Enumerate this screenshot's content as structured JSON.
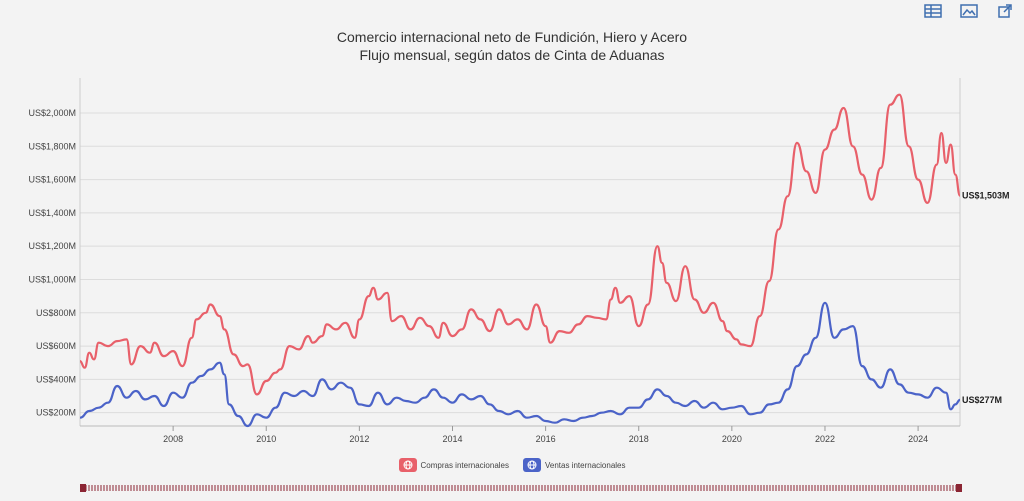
{
  "toolbar": {
    "icons": [
      "table-icon",
      "image-icon",
      "external-link-icon"
    ]
  },
  "colors": {
    "series1": "#e8606a",
    "series2": "#4b63c8",
    "grid": "#dcdcdc",
    "accent": "#8b2533"
  },
  "chart_data": {
    "type": "line",
    "title": "Comercio internacional neto de Fundición, Hiero y Acero",
    "subtitle": "Flujo mensual, según datos de Cinta de Aduanas",
    "xlabel": "",
    "ylabel": "",
    "xlim": [
      2006.0,
      2024.9
    ],
    "ylim": [
      120,
      2150
    ],
    "x_ticks": [
      2008,
      2010,
      2012,
      2014,
      2016,
      2018,
      2020,
      2022,
      2024
    ],
    "y_ticks": [
      {
        "value": 200,
        "label": "US$200M"
      },
      {
        "value": 400,
        "label": "US$400M"
      },
      {
        "value": 600,
        "label": "US$600M"
      },
      {
        "value": 800,
        "label": "US$800M"
      },
      {
        "value": 1000,
        "label": "US$1,000M"
      },
      {
        "value": 1200,
        "label": "US$1,200M"
      },
      {
        "value": 1400,
        "label": "US$1,400M"
      },
      {
        "value": 1600,
        "label": "US$1,600M"
      },
      {
        "value": 1800,
        "label": "US$1,800M"
      },
      {
        "value": 2000,
        "label": "US$2,000M"
      }
    ],
    "legend_position": "bottom",
    "series": [
      {
        "name": "Compras internacionales",
        "end_label": "US$1,503M",
        "points": [
          [
            2006.0,
            510
          ],
          [
            2006.1,
            470
          ],
          [
            2006.2,
            560
          ],
          [
            2006.3,
            520
          ],
          [
            2006.4,
            620
          ],
          [
            2006.6,
            600
          ],
          [
            2006.8,
            630
          ],
          [
            2007.0,
            640
          ],
          [
            2007.1,
            490
          ],
          [
            2007.3,
            600
          ],
          [
            2007.5,
            560
          ],
          [
            2007.6,
            620
          ],
          [
            2007.8,
            540
          ],
          [
            2008.0,
            570
          ],
          [
            2008.2,
            480
          ],
          [
            2008.4,
            650
          ],
          [
            2008.5,
            760
          ],
          [
            2008.7,
            800
          ],
          [
            2008.8,
            850
          ],
          [
            2009.0,
            780
          ],
          [
            2009.1,
            700
          ],
          [
            2009.3,
            550
          ],
          [
            2009.5,
            480
          ],
          [
            2009.6,
            490
          ],
          [
            2009.8,
            310
          ],
          [
            2010.0,
            390
          ],
          [
            2010.2,
            440
          ],
          [
            2010.3,
            460
          ],
          [
            2010.5,
            600
          ],
          [
            2010.7,
            580
          ],
          [
            2010.9,
            660
          ],
          [
            2011.0,
            620
          ],
          [
            2011.2,
            660
          ],
          [
            2011.3,
            730
          ],
          [
            2011.5,
            700
          ],
          [
            2011.7,
            740
          ],
          [
            2011.9,
            650
          ],
          [
            2012.0,
            760
          ],
          [
            2012.2,
            900
          ],
          [
            2012.3,
            950
          ],
          [
            2012.4,
            880
          ],
          [
            2012.6,
            920
          ],
          [
            2012.7,
            750
          ],
          [
            2012.9,
            780
          ],
          [
            2013.1,
            700
          ],
          [
            2013.3,
            770
          ],
          [
            2013.5,
            720
          ],
          [
            2013.7,
            650
          ],
          [
            2013.8,
            740
          ],
          [
            2014.0,
            660
          ],
          [
            2014.2,
            700
          ],
          [
            2014.4,
            820
          ],
          [
            2014.6,
            760
          ],
          [
            2014.8,
            690
          ],
          [
            2015.0,
            820
          ],
          [
            2015.2,
            730
          ],
          [
            2015.4,
            760
          ],
          [
            2015.6,
            700
          ],
          [
            2015.8,
            850
          ],
          [
            2016.0,
            720
          ],
          [
            2016.1,
            620
          ],
          [
            2016.3,
            690
          ],
          [
            2016.5,
            680
          ],
          [
            2016.7,
            730
          ],
          [
            2016.9,
            780
          ],
          [
            2017.1,
            770
          ],
          [
            2017.3,
            760
          ],
          [
            2017.4,
            880
          ],
          [
            2017.5,
            950
          ],
          [
            2017.6,
            860
          ],
          [
            2017.8,
            900
          ],
          [
            2018.0,
            720
          ],
          [
            2018.2,
            850
          ],
          [
            2018.4,
            1200
          ],
          [
            2018.5,
            1100
          ],
          [
            2018.6,
            980
          ],
          [
            2018.8,
            870
          ],
          [
            2019.0,
            1080
          ],
          [
            2019.2,
            880
          ],
          [
            2019.4,
            800
          ],
          [
            2019.6,
            860
          ],
          [
            2019.8,
            750
          ],
          [
            2019.9,
            690
          ],
          [
            2020.1,
            640
          ],
          [
            2020.2,
            610
          ],
          [
            2020.4,
            600
          ],
          [
            2020.6,
            780
          ],
          [
            2020.8,
            990
          ],
          [
            2021.0,
            1300
          ],
          [
            2021.2,
            1500
          ],
          [
            2021.4,
            1820
          ],
          [
            2021.6,
            1650
          ],
          [
            2021.8,
            1520
          ],
          [
            2022.0,
            1780
          ],
          [
            2022.2,
            1900
          ],
          [
            2022.4,
            2030
          ],
          [
            2022.6,
            1800
          ],
          [
            2022.8,
            1630
          ],
          [
            2023.0,
            1480
          ],
          [
            2023.2,
            1670
          ],
          [
            2023.4,
            2050
          ],
          [
            2023.6,
            2110
          ],
          [
            2023.8,
            1800
          ],
          [
            2024.0,
            1600
          ],
          [
            2024.2,
            1460
          ],
          [
            2024.4,
            1690
          ],
          [
            2024.5,
            1880
          ],
          [
            2024.6,
            1700
          ],
          [
            2024.7,
            1810
          ],
          [
            2024.8,
            1630
          ],
          [
            2024.9,
            1503
          ]
        ]
      },
      {
        "name": "Ventas internacionales",
        "end_label": "US$277M",
        "points": [
          [
            2006.0,
            170
          ],
          [
            2006.2,
            210
          ],
          [
            2006.4,
            230
          ],
          [
            2006.6,
            260
          ],
          [
            2006.8,
            360
          ],
          [
            2007.0,
            290
          ],
          [
            2007.2,
            330
          ],
          [
            2007.4,
            280
          ],
          [
            2007.6,
            300
          ],
          [
            2007.8,
            240
          ],
          [
            2008.0,
            320
          ],
          [
            2008.2,
            290
          ],
          [
            2008.4,
            380
          ],
          [
            2008.6,
            420
          ],
          [
            2008.8,
            460
          ],
          [
            2009.0,
            500
          ],
          [
            2009.1,
            430
          ],
          [
            2009.2,
            250
          ],
          [
            2009.4,
            180
          ],
          [
            2009.6,
            120
          ],
          [
            2009.8,
            190
          ],
          [
            2010.0,
            170
          ],
          [
            2010.2,
            230
          ],
          [
            2010.4,
            320
          ],
          [
            2010.6,
            300
          ],
          [
            2010.8,
            330
          ],
          [
            2011.0,
            300
          ],
          [
            2011.2,
            400
          ],
          [
            2011.4,
            340
          ],
          [
            2011.6,
            380
          ],
          [
            2011.8,
            350
          ],
          [
            2012.0,
            250
          ],
          [
            2012.2,
            240
          ],
          [
            2012.4,
            320
          ],
          [
            2012.6,
            250
          ],
          [
            2012.8,
            290
          ],
          [
            2013.0,
            270
          ],
          [
            2013.2,
            260
          ],
          [
            2013.4,
            290
          ],
          [
            2013.6,
            340
          ],
          [
            2013.8,
            290
          ],
          [
            2014.0,
            260
          ],
          [
            2014.2,
            310
          ],
          [
            2014.4,
            280
          ],
          [
            2014.6,
            300
          ],
          [
            2014.8,
            250
          ],
          [
            2015.0,
            210
          ],
          [
            2015.2,
            190
          ],
          [
            2015.4,
            210
          ],
          [
            2015.6,
            170
          ],
          [
            2015.8,
            180
          ],
          [
            2016.0,
            150
          ],
          [
            2016.2,
            140
          ],
          [
            2016.4,
            160
          ],
          [
            2016.6,
            150
          ],
          [
            2016.8,
            170
          ],
          [
            2017.0,
            180
          ],
          [
            2017.2,
            200
          ],
          [
            2017.4,
            210
          ],
          [
            2017.6,
            190
          ],
          [
            2017.8,
            230
          ],
          [
            2018.0,
            230
          ],
          [
            2018.2,
            280
          ],
          [
            2018.4,
            340
          ],
          [
            2018.6,
            300
          ],
          [
            2018.8,
            260
          ],
          [
            2019.0,
            240
          ],
          [
            2019.2,
            270
          ],
          [
            2019.4,
            230
          ],
          [
            2019.6,
            260
          ],
          [
            2019.8,
            220
          ],
          [
            2020.0,
            230
          ],
          [
            2020.2,
            240
          ],
          [
            2020.4,
            190
          ],
          [
            2020.6,
            200
          ],
          [
            2020.8,
            250
          ],
          [
            2021.0,
            260
          ],
          [
            2021.2,
            340
          ],
          [
            2021.4,
            480
          ],
          [
            2021.6,
            550
          ],
          [
            2021.8,
            650
          ],
          [
            2022.0,
            860
          ],
          [
            2022.2,
            650
          ],
          [
            2022.4,
            700
          ],
          [
            2022.6,
            720
          ],
          [
            2022.8,
            480
          ],
          [
            2023.0,
            400
          ],
          [
            2023.2,
            350
          ],
          [
            2023.4,
            460
          ],
          [
            2023.6,
            370
          ],
          [
            2023.8,
            320
          ],
          [
            2024.0,
            310
          ],
          [
            2024.2,
            290
          ],
          [
            2024.4,
            350
          ],
          [
            2024.6,
            320
          ],
          [
            2024.7,
            220
          ],
          [
            2024.8,
            250
          ],
          [
            2024.9,
            277
          ]
        ]
      }
    ]
  }
}
